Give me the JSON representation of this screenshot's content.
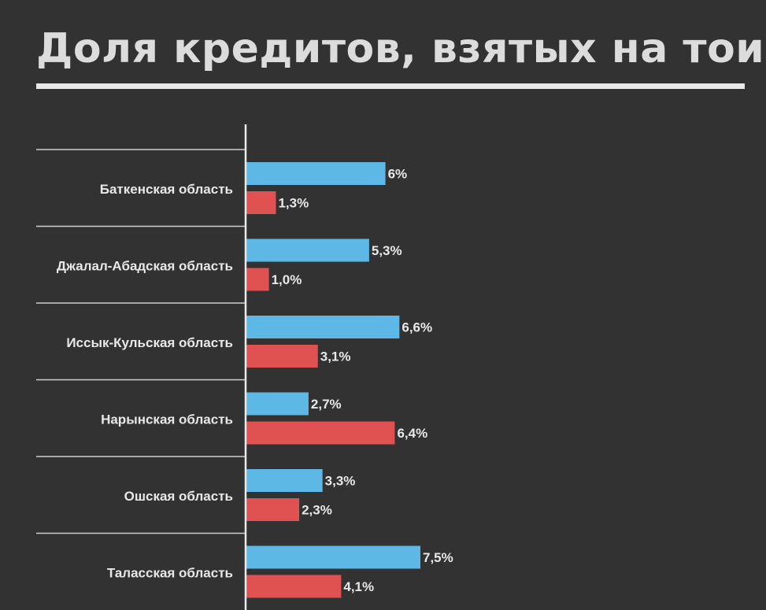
{
  "title": "Доля кредитов, взятых на тои",
  "colors": {
    "background": "#333232",
    "series_a": "#5db8e6",
    "series_b": "#e05252",
    "text": "#e8e8e8",
    "grid": "#cfcfcf"
  },
  "chart_data": {
    "type": "bar",
    "orientation": "horizontal",
    "title": "Доля кредитов, взятых на тои",
    "categories": [
      "Баткенская область",
      "Джалал-Абадская область",
      "Иссык-Кульская область",
      "Нарынская область",
      "Ошская область",
      "Таласская область"
    ],
    "series": [
      {
        "color": "#5db8e6",
        "values": [
          6,
          5.3,
          6.6,
          2.7,
          3.3,
          7.5
        ],
        "labels": [
          "6%",
          "5,3%",
          "6,6%",
          "2,7%",
          "3,3%",
          "7,5%"
        ]
      },
      {
        "color": "#e05252",
        "values": [
          1.3,
          1.0,
          3.1,
          6.4,
          2.3,
          4.1
        ],
        "labels": [
          "1,3%",
          "1,0%",
          "3,1%",
          "6,4%",
          "2,3%",
          "4,1%"
        ]
      }
    ],
    "xlim": [
      0,
      30
    ],
    "grid": false,
    "legend": "none"
  }
}
